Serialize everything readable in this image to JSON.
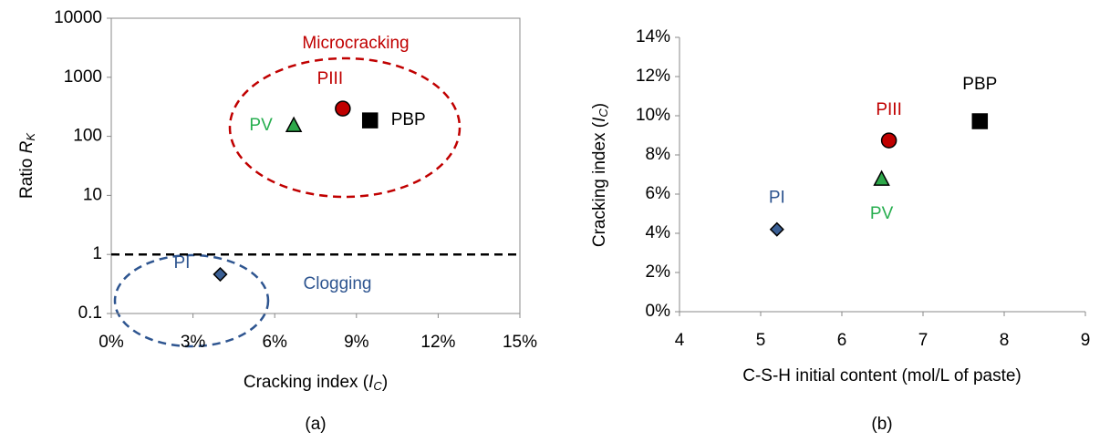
{
  "chart_data": [
    {
      "type": "scatter",
      "caption": "(a)",
      "xlabel": [
        "Cracking index (",
        "I",
        "C",
        ")"
      ],
      "ylabel": [
        "Ratio ",
        "R",
        "K"
      ],
      "xlim": [
        0,
        15
      ],
      "xticks": [
        {
          "value": 0,
          "label": "0%"
        },
        {
          "value": 3,
          "label": "3%"
        },
        {
          "value": 6,
          "label": "6%"
        },
        {
          "value": 9,
          "label": "9%"
        },
        {
          "value": 12,
          "label": "12%"
        },
        {
          "value": 15,
          "label": "15%"
        }
      ],
      "ylim": [
        0.1,
        10000
      ],
      "yticks": [
        0.1,
        1,
        10,
        100,
        1000,
        10000
      ],
      "log_y": true,
      "hline": 1,
      "annotations": [
        {
          "text": "Microcracking",
          "color": "#c00000"
        },
        {
          "text": "Clogging",
          "color": "#2e5590"
        }
      ],
      "series": [
        {
          "name": "PI",
          "color": "#3a5f94",
          "text_color": "#2e5590",
          "marker": "diamond",
          "x": [
            4.0
          ],
          "values": [
            0.46
          ]
        },
        {
          "name": "PV",
          "color": "#2ea84a",
          "text_color": "#27ae4f",
          "marker": "triangle",
          "x": [
            6.7
          ],
          "values": [
            150
          ]
        },
        {
          "name": "PIII",
          "color": "#c00000",
          "text_color": "#c00000",
          "marker": "circle",
          "x": [
            8.5
          ],
          "values": [
            295
          ]
        },
        {
          "name": "PBP",
          "color": "#000000",
          "text_color": "#000000",
          "marker": "square",
          "x": [
            9.5
          ],
          "values": [
            186
          ]
        }
      ]
    },
    {
      "type": "scatter",
      "caption": "(b)",
      "xlabel": [
        "C-S-H initial content (mol/L of paste)"
      ],
      "ylabel": [
        "Cracking index (",
        "I",
        "C",
        ")"
      ],
      "xlim": [
        4,
        9
      ],
      "xticks": [
        4,
        5,
        6,
        7,
        8,
        9
      ],
      "ylim": [
        0,
        14
      ],
      "yticks": [
        {
          "value": 0,
          "label": "0%"
        },
        {
          "value": 2,
          "label": "2%"
        },
        {
          "value": 4,
          "label": "4%"
        },
        {
          "value": 6,
          "label": "6%"
        },
        {
          "value": 8,
          "label": "8%"
        },
        {
          "value": 10,
          "label": "10%"
        },
        {
          "value": 12,
          "label": "12%"
        },
        {
          "value": 14,
          "label": "14%"
        }
      ],
      "log_y": false,
      "series": [
        {
          "name": "PI",
          "color": "#3a5f94",
          "text_color": "#2e5590",
          "marker": "diamond",
          "x": [
            5.2
          ],
          "values": [
            4.2
          ]
        },
        {
          "name": "PV",
          "color": "#2ea84a",
          "text_color": "#27ae4f",
          "marker": "triangle",
          "x": [
            6.49
          ],
          "values": [
            6.74
          ]
        },
        {
          "name": "PIII",
          "color": "#c00000",
          "text_color": "#c00000",
          "marker": "circle",
          "x": [
            6.58
          ],
          "values": [
            8.74
          ]
        },
        {
          "name": "PBP",
          "color": "#000000",
          "text_color": "#000000",
          "marker": "square",
          "x": [
            7.7
          ],
          "values": [
            9.72
          ]
        }
      ]
    }
  ]
}
